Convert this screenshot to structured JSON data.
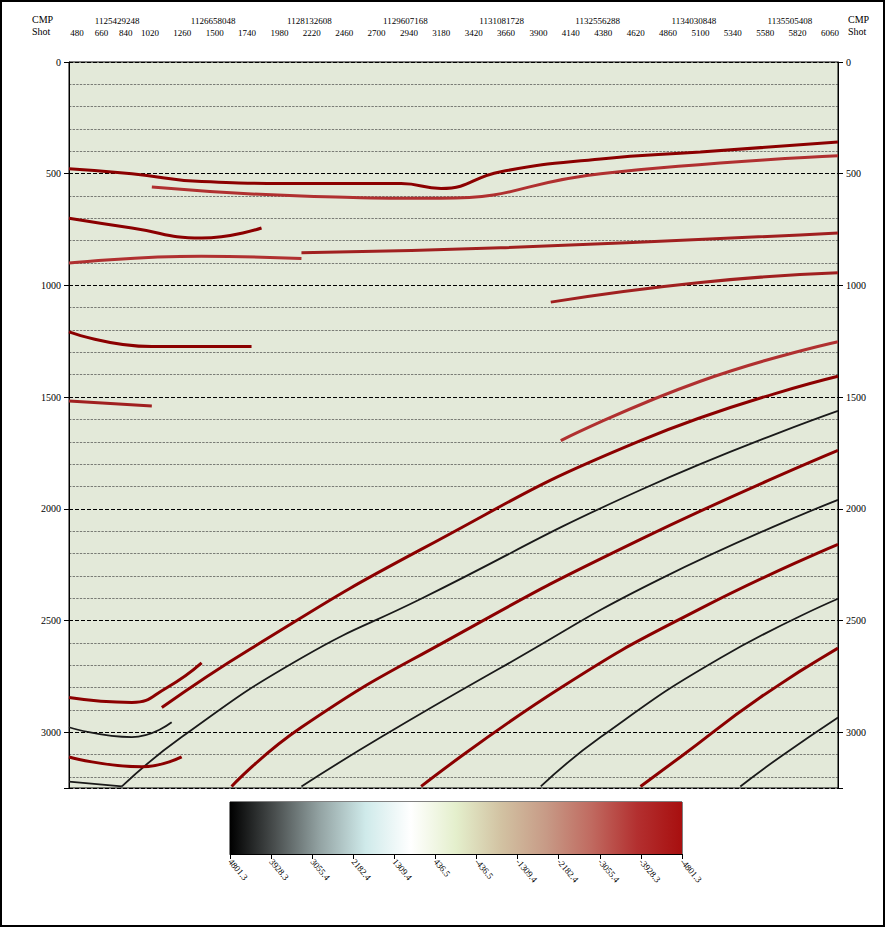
{
  "chart_data": {
    "type": "line",
    "xlabel": "Shot",
    "x2label": "CMP",
    "x2_categories": [
      "1125429248",
      "1126658048",
      "1128132608",
      "1129607168",
      "1131081728",
      "1132556288",
      "1134030848",
      "1135505408"
    ],
    "xlim": [
      420,
      6120
    ],
    "xticks": [
      480,
      660,
      840,
      1020,
      1260,
      1500,
      1740,
      1980,
      2220,
      2460,
      2700,
      2940,
      3180,
      3420,
      3660,
      3900,
      4140,
      4380,
      4620,
      4860,
      5100,
      5340,
      5580,
      5820,
      6060
    ],
    "ylim": [
      0,
      3250
    ],
    "yticks": [
      0,
      500,
      1000,
      1500,
      2000,
      2500,
      3000
    ],
    "grid": true,
    "series": [
      {
        "color": "#8b0000",
        "x": [
          420,
          886,
          1403,
          2143,
          2882,
          3178,
          3621,
          4361,
          5100,
          6120
        ],
        "values": [
          478,
          500,
          535,
          544,
          544,
          566,
          491,
          434,
          403,
          358
        ]
      },
      {
        "color": "#b03030",
        "x": [
          1034,
          2143,
          3178,
          4361,
          6120
        ],
        "values": [
          560,
          600,
          610,
          500,
          420
        ]
      },
      {
        "color": "#8b0000",
        "x": [
          420,
          886,
          1403,
          1847
        ],
        "values": [
          699,
          743,
          788,
          743
        ]
      },
      {
        "color": "#b03030",
        "x": [
          420,
          1400,
          2143
        ],
        "values": [
          900,
          870,
          880
        ]
      },
      {
        "color": "#a02020",
        "x": [
          2143,
          3621,
          6120
        ],
        "values": [
          854,
          832,
          765
        ]
      },
      {
        "color": "#a02020",
        "x": [
          3991,
          5100,
          6120
        ],
        "values": [
          1075,
          987,
          943
        ]
      },
      {
        "color": "#8b0000",
        "x": [
          420,
          1034,
          1773
        ],
        "values": [
          1208,
          1274,
          1274
        ]
      },
      {
        "color": "#a02020",
        "x": [
          420,
          1034
        ],
        "values": [
          1518,
          1540
        ]
      },
      {
        "color": "#b03030",
        "x": [
          6120,
          5100,
          4065
        ],
        "values": [
          1252,
          1429,
          1695
        ]
      },
      {
        "color": "#8b0000",
        "x": [
          6120,
          4656,
          3030,
          1773,
          1108
        ],
        "values": [
          1407,
          1695,
          2182,
          2624,
          2890
        ]
      },
      {
        "color": "#1a1a1a",
        "x": [
          6120,
          4656,
          3030,
          2143,
          1255,
          812
        ],
        "values": [
          1562,
          1916,
          2403,
          2668,
          3022,
          3243
        ]
      },
      {
        "color": "#8b0000",
        "x": [
          6120,
          4656,
          3251,
          2143,
          1625
        ],
        "values": [
          1739,
          2137,
          2580,
          2978,
          3243
        ]
      },
      {
        "color": "#1a1a1a",
        "x": [
          6120,
          4804,
          3621,
          2734,
          2143
        ],
        "values": [
          1960,
          2314,
          2712,
          3022,
          3243
        ]
      },
      {
        "color": "#8b0000",
        "x": [
          6120,
          5100,
          4065,
          3030
        ],
        "values": [
          2159,
          2447,
          2801,
          3243
        ]
      },
      {
        "color": "#1a1a1a",
        "x": [
          6120,
          5248,
          4361,
          3917
        ],
        "values": [
          2403,
          2668,
          3022,
          3243
        ]
      },
      {
        "color": "#8b0000",
        "x": [
          6120,
          5543,
          4952,
          4656
        ],
        "values": [
          2624,
          2845,
          3111,
          3243
        ]
      },
      {
        "color": "#1a1a1a",
        "x": [
          6120,
          5691,
          5396
        ],
        "values": [
          2934,
          3111,
          3243
        ]
      },
      {
        "color": "#8b0000",
        "x": [
          420,
          886,
          1145,
          1403
        ],
        "values": [
          2845,
          2867,
          2801,
          2690
        ]
      },
      {
        "color": "#1a1a1a",
        "x": [
          420,
          886,
          1181
        ],
        "values": [
          2978,
          3022,
          2956
        ]
      },
      {
        "color": "#8b0000",
        "x": [
          420,
          960,
          1255
        ],
        "values": [
          3111,
          3155,
          3111
        ]
      },
      {
        "color": "#1a1a1a",
        "x": [
          420,
          812
        ],
        "values": [
          3221,
          3243
        ]
      }
    ],
    "color_bar": {
      "range": [
        4801.3,
        -4801.3
      ],
      "ticks": [
        4801.3,
        3928.3,
        3055.4,
        2182.4,
        1309.4,
        436.5,
        -436.5,
        -1309.4,
        -2182.4,
        -3055.4,
        -3928.3,
        -4801.3
      ],
      "colors": [
        "#000000",
        "#4a4f4f",
        "#94a4a4",
        "#cfeaea",
        "#ffffff",
        "#e4efcc",
        "#d2c2a2",
        "#c79a86",
        "#c06a60",
        "#b33030",
        "#a80f0f"
      ]
    }
  }
}
